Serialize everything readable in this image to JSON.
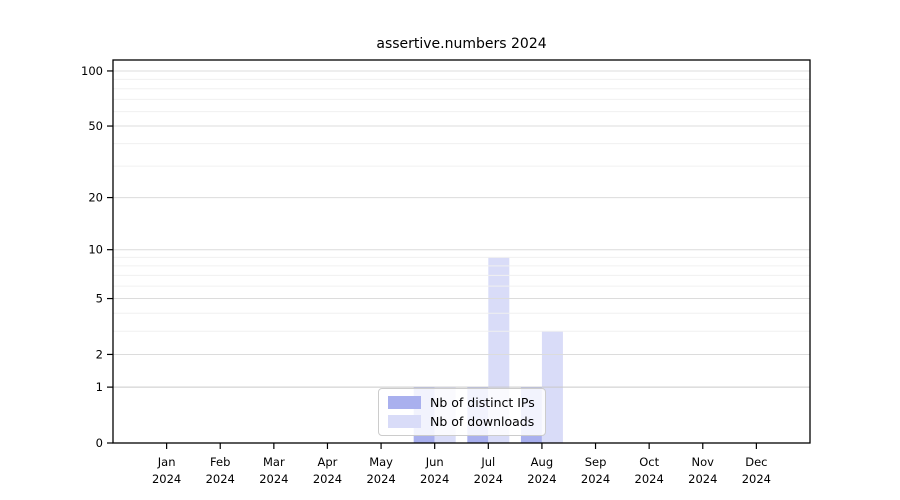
{
  "title": "assertive.numbers 2024",
  "chart_data": {
    "type": "bar",
    "title": "assertive.numbers 2024",
    "categories": [
      "Jan",
      "Feb",
      "Mar",
      "Apr",
      "May",
      "Jun",
      "Jul",
      "Aug",
      "Sep",
      "Oct",
      "Nov",
      "Dec"
    ],
    "category_year": "2024",
    "series": [
      {
        "name": "Nb of distinct IPs",
        "color": "#a9b0ee",
        "values": [
          0,
          0,
          0,
          0,
          0,
          1,
          1,
          1,
          0,
          0,
          0,
          0
        ]
      },
      {
        "name": "Nb of downloads",
        "color": "#d9dcf8",
        "values": [
          0,
          0,
          0,
          0,
          0,
          1,
          9,
          3,
          0,
          0,
          0,
          0
        ]
      }
    ],
    "xlabel": "",
    "ylabel": "",
    "yscale": "log1p",
    "ytick_values": [
      0,
      1,
      2,
      5,
      10,
      20,
      50,
      100
    ],
    "yminor_values": [
      3,
      4,
      6,
      7,
      8,
      9,
      30,
      40,
      60,
      70,
      80,
      90
    ],
    "ylim": [
      0,
      114.7
    ],
    "grid": true,
    "legend_position": "lower center"
  },
  "colors": {
    "background": "#ffffff",
    "axis": "#000000",
    "text": "#000000",
    "grid_major": "#dcdcdc",
    "grid_major_unit": "#c9c9c9",
    "grid_minor": "#f0f0f0",
    "legend_border": "#cccccc",
    "legend_background": "rgba(255,255,255,0.85)"
  }
}
